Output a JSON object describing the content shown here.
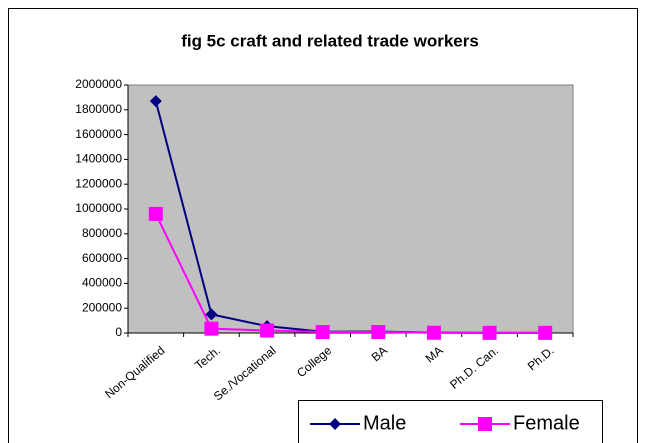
{
  "chart_data": {
    "type": "line",
    "title": "fig 5c craft and related trade workers",
    "categories": [
      "Non-Qualified",
      "Tech.",
      "Se./Vocational",
      "College",
      "BA",
      "MA",
      "Ph.D. Can.",
      "Ph.D."
    ],
    "series": [
      {
        "name": "Male",
        "color": "#000080",
        "marker": "diamond",
        "values": [
          1870000,
          150000,
          55000,
          10000,
          12000,
          3000,
          1000,
          1000
        ]
      },
      {
        "name": "Female",
        "color": "#ff00ff",
        "marker": "square",
        "values": [
          960000,
          35000,
          20000,
          8000,
          8000,
          2000,
          1000,
          1000
        ]
      }
    ],
    "ylim": [
      0,
      2000000
    ],
    "yticks": [
      0,
      200000,
      400000,
      600000,
      800000,
      1000000,
      1200000,
      1400000,
      1600000,
      1800000,
      2000000
    ],
    "grid": false,
    "legend": "bottom-right",
    "plot_background": "#c0c0c0"
  }
}
